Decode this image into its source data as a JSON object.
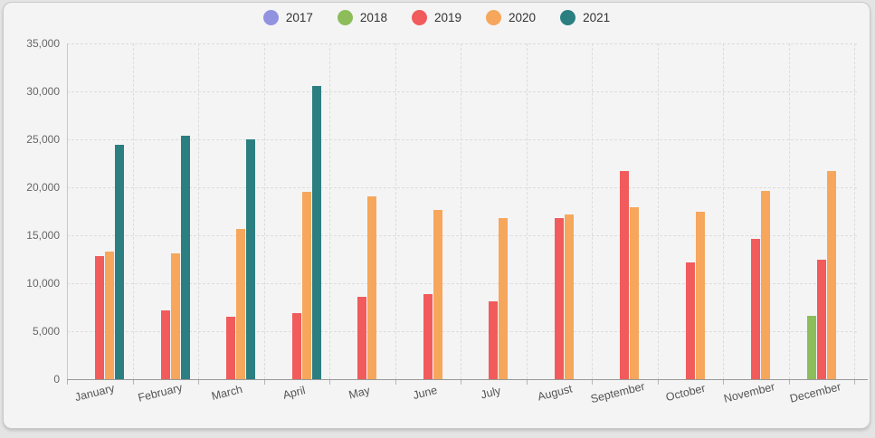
{
  "page": {
    "background": "#e4e4e4",
    "card_background": "#f4f4f5",
    "card_border": "#c9c9c9",
    "grid_color": "#dcdcdc",
    "axis_color": "#999999",
    "label_color": "#666666"
  },
  "chart_data": {
    "type": "bar",
    "title": "",
    "xlabel": "",
    "ylabel": "",
    "categories": [
      "January",
      "February",
      "March",
      "April",
      "May",
      "June",
      "July",
      "August",
      "September",
      "October",
      "November",
      "December"
    ],
    "series": [
      {
        "name": "2017",
        "color": "#9193e0",
        "values": [
          null,
          null,
          null,
          null,
          null,
          null,
          null,
          null,
          null,
          null,
          null,
          null
        ]
      },
      {
        "name": "2018",
        "color": "#8cbd5a",
        "values": [
          null,
          null,
          null,
          null,
          null,
          null,
          null,
          null,
          null,
          null,
          null,
          6600
        ]
      },
      {
        "name": "2019",
        "color": "#f15b5b",
        "values": [
          12800,
          7200,
          6500,
          6900,
          8600,
          8900,
          8100,
          16800,
          21700,
          12200,
          14600,
          12500
        ]
      },
      {
        "name": "2020",
        "color": "#f6a75c",
        "values": [
          13300,
          13100,
          15700,
          19500,
          19100,
          17600,
          16800,
          17200,
          17900,
          17500,
          19600,
          21700
        ]
      },
      {
        "name": "2021",
        "color": "#2b7f81",
        "values": [
          24400,
          25400,
          25000,
          30600,
          null,
          null,
          null,
          null,
          null,
          null,
          null,
          null
        ]
      }
    ],
    "ylim": [
      0,
      35000
    ],
    "ytick_step": 5000,
    "ytick_labels": [
      "0",
      "5,000",
      "10,000",
      "15,000",
      "20,000",
      "25,000",
      "30,000",
      "35,000"
    ],
    "grid": true,
    "grid_style": "dashed",
    "legend_position": "top-center"
  }
}
